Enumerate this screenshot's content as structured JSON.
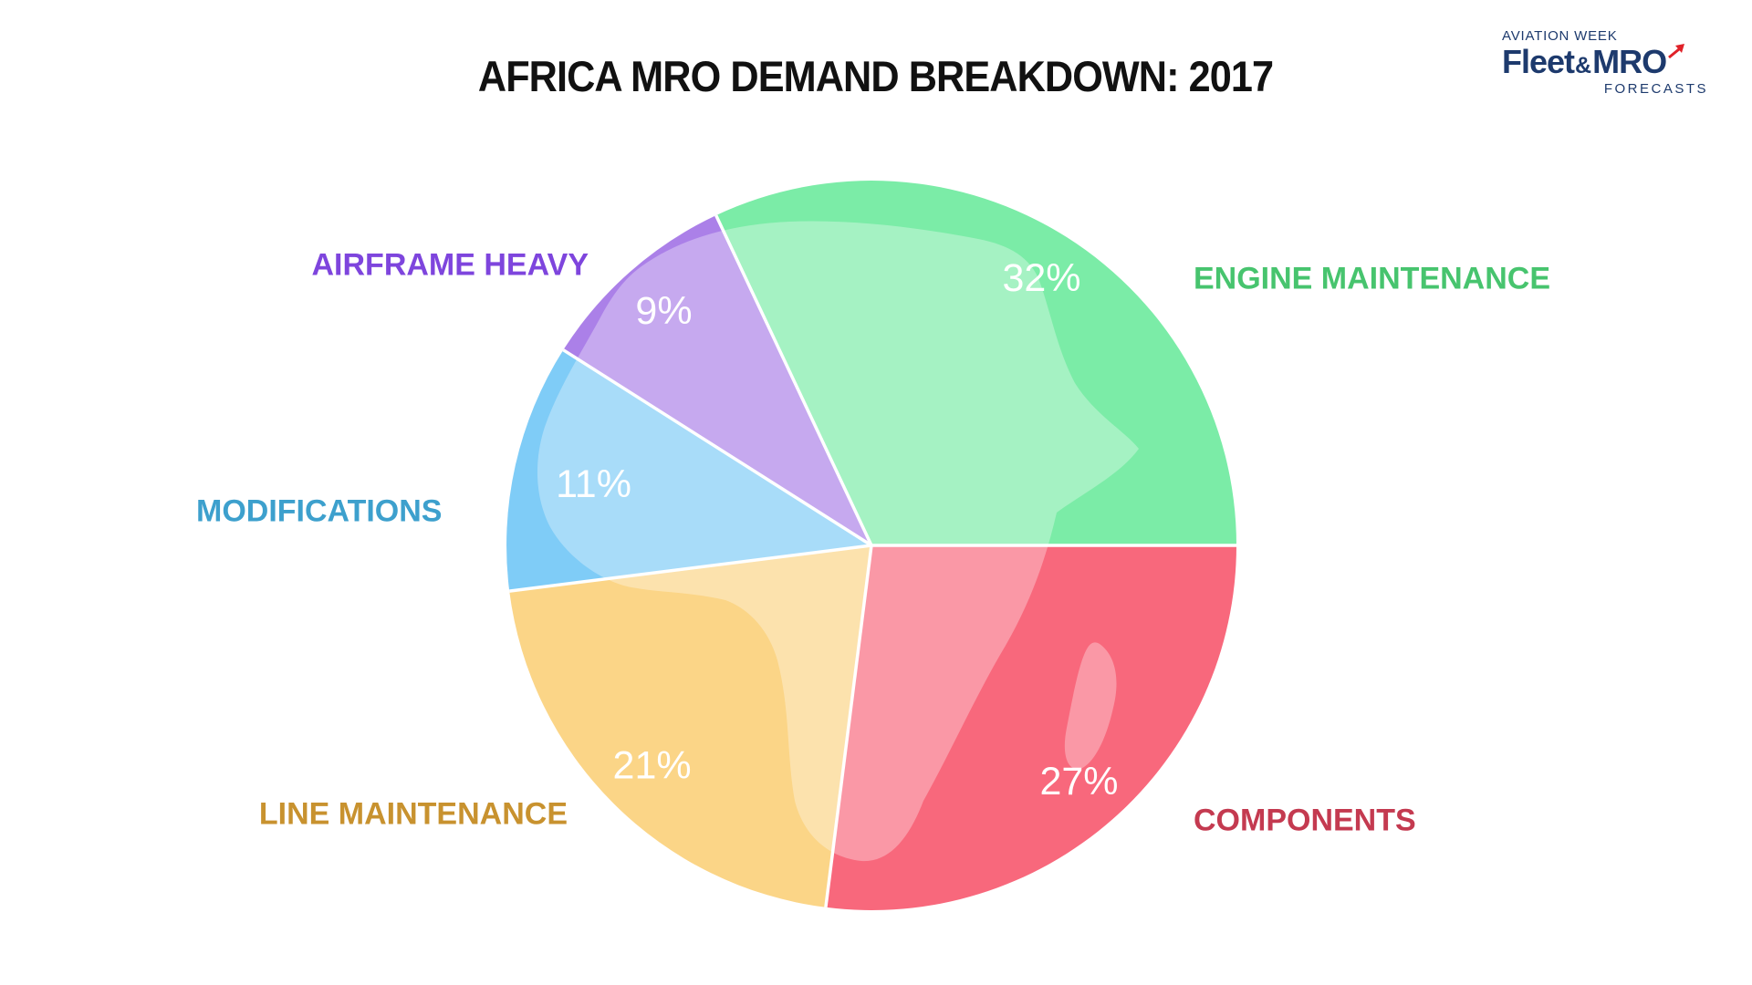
{
  "page": {
    "background": "#ffffff"
  },
  "header": {
    "title": "AFRICA MRO DEMAND BREAKDOWN: 2017",
    "title_color": "#111111"
  },
  "logo": {
    "line1": "AVIATION WEEK",
    "brand_fleet": "Fleet",
    "brand_amp": "&",
    "brand_mro": "MRO",
    "line3": "FORECASTS",
    "navy": "#1d3a6d",
    "arrow_red": "#e02128"
  },
  "chart_data": {
    "type": "pie",
    "title": "AFRICA MRO DEMAND BREAKDOWN: 2017",
    "unit": "%",
    "direction": "clockwise",
    "start_angle_deg_math": 115.2,
    "legend_position": "around-pie",
    "overlay": "africa-map-silhouette",
    "value_label_color": "#ffffff",
    "separator_color": "#ffffff",
    "slices": [
      {
        "id": "engine-maintenance",
        "label": "ENGINE MAINTENANCE",
        "value": 32,
        "color": "#7beca7",
        "label_color": "#47c46e"
      },
      {
        "id": "components",
        "label": "COMPONENTS",
        "value": 27,
        "color": "#f8687c",
        "label_color": "#c43a50"
      },
      {
        "id": "line-maintenance",
        "label": "LINE MAINTENANCE",
        "value": 21,
        "color": "#fbd587",
        "label_color": "#c8922f"
      },
      {
        "id": "modifications",
        "label": "MODIFICATIONS",
        "value": 11,
        "color": "#7fccf7",
        "label_color": "#3da0cd"
      },
      {
        "id": "airframe-heavy",
        "label": "AIRFRAME HEAVY",
        "value": 9,
        "color": "#ab80e8",
        "label_color": "#7e45dd"
      }
    ]
  }
}
